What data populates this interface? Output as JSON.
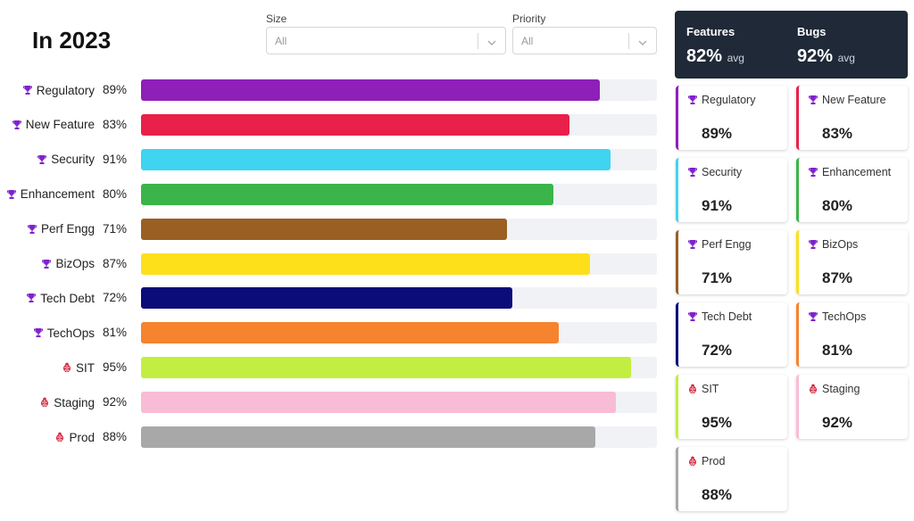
{
  "header": {
    "title": "In 2023"
  },
  "filters": [
    {
      "label": "Size",
      "value": "All"
    },
    {
      "label": "Priority",
      "value": "All"
    }
  ],
  "summary": [
    {
      "label": "Features",
      "value": 82,
      "value_label": "82%",
      "unit": "avg"
    },
    {
      "label": "Bugs",
      "value": 92,
      "value_label": "92%",
      "unit": "avg"
    }
  ],
  "chart_data": {
    "type": "bar",
    "orientation": "horizontal",
    "categories": [
      "Regulatory",
      "New Feature",
      "Security",
      "Enhancement",
      "Perf Engg",
      "BizOps",
      "Tech Debt",
      "TechOps",
      "SIT",
      "Staging",
      "Prod"
    ],
    "values": [
      89,
      83,
      91,
      80,
      71,
      87,
      72,
      81,
      95,
      92,
      88
    ],
    "value_labels": [
      "89%",
      "83%",
      "91%",
      "80%",
      "71%",
      "87%",
      "72%",
      "81%",
      "95%",
      "92%",
      "88%"
    ],
    "colors": [
      "#8e1fb8",
      "#e8204a",
      "#3fd4f0",
      "#3bb44a",
      "#9a5f22",
      "#fde01a",
      "#0b0b7a",
      "#f6832e",
      "#c2ee42",
      "#f9bcd6",
      "#a8a8a8"
    ],
    "icons": [
      "trophy",
      "trophy",
      "trophy",
      "trophy",
      "trophy",
      "trophy",
      "trophy",
      "trophy",
      "bug",
      "bug",
      "bug"
    ],
    "xlim": [
      0,
      100
    ]
  }
}
